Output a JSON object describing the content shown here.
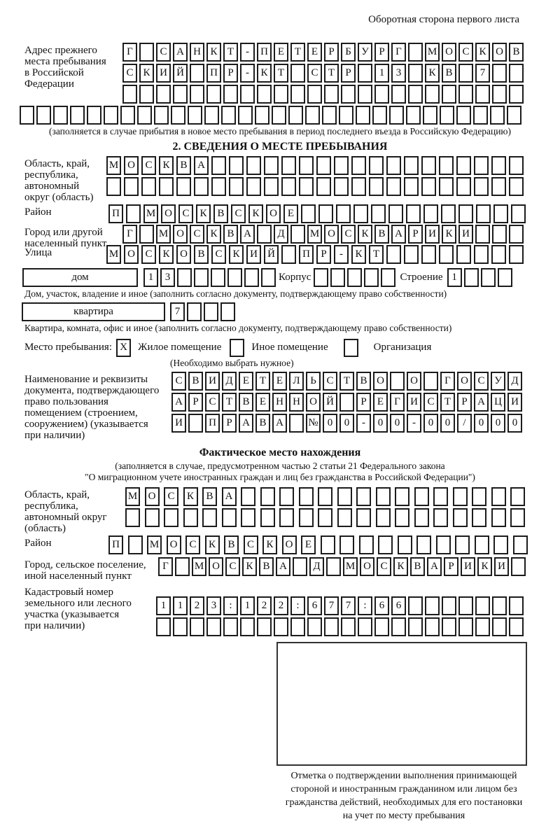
{
  "page": {
    "header_note": "Оборотная сторона первого листа"
  },
  "prev_address": {
    "label": "Адрес прежнего\nместа пребывания\nв Российской\nФедерации",
    "row1": {
      "text": "Г САНКТ-ПЕТЕРБУРГ МОСКОВ",
      "len": 24
    },
    "row2": {
      "text": "СКИЙ ПР-КТ СТР 13 КВ 7",
      "len": 24
    },
    "row3": {
      "text": "",
      "len": 24
    },
    "row4": {
      "text": "",
      "len": 30
    },
    "note": "(заполняется в случае прибытия в новое место пребывания в период последнего въезда в Российскую Федерацию)"
  },
  "section2": {
    "title": "2. СВЕДЕНИЯ О МЕСТЕ ПРЕБЫВАНИЯ",
    "region": {
      "label": "Область, край,\nреспублика,\nавтономный\nокруг (область)",
      "row1": {
        "text": "МОСКВА",
        "len": 24
      },
      "row2": {
        "text": "",
        "len": 24
      }
    },
    "district": {
      "label": "Район",
      "row": {
        "text": "П МОСКВСКОЕ",
        "len": 24
      }
    },
    "city": {
      "label": "Город или другой\nнаселенный пункт",
      "row": {
        "text": "Г МОСКВА Д МОСКВАРИКИ",
        "len": 24
      }
    },
    "street": {
      "label": "Улица",
      "row": {
        "text": "МОСКОВСКИЙ ПР-КТ",
        "len": 24
      }
    },
    "house": {
      "box_label": "дом",
      "cells": {
        "text": "13",
        "len": 8
      },
      "korpus_label": "Корпус",
      "korpus_cells": {
        "text": "",
        "len": 5
      },
      "stroenie_label": "Строение",
      "stroenie_cells": {
        "text": "1",
        "len": 4
      }
    },
    "house_note": "Дом, участок, владение и иное (заполнить согласно документу, подтверждающему право собственности)",
    "apartment": {
      "box_label": "квартира",
      "cells": {
        "text": "7",
        "len": 4
      }
    },
    "apartment_note": "Квартира, комната, офис и иное (заполнить согласно документу, подтверждающему право собственности)",
    "stay_type": {
      "label": "Место пребывания:",
      "options": [
        {
          "label": "Жилое помещение",
          "mark": "X"
        },
        {
          "label": "Иное помещение",
          "mark": ""
        },
        {
          "label": "Организация",
          "mark": ""
        }
      ],
      "note": "(Необходимо выбрать нужное)"
    },
    "document": {
      "label": "Наименование и реквизиты\nдокумента, подтверждающего\nправо пользования\nпомещением (строением,\nсооружением) (указывается\nпри наличии)",
      "row1": {
        "text": "СВИДЕТЕЛЬСТВО О ГОСУД",
        "len": 21
      },
      "row2": {
        "text": "АРСТВЕННОЙ РЕГИСТРАЦИ",
        "len": 21
      },
      "row3": {
        "text": "И ПРАВА №00-00-00/000",
        "len": 21
      }
    }
  },
  "actual_location": {
    "title": "Фактическое место нахождения",
    "note": "(заполняется в случае, предусмотренном частью 2 статьи 21 Федерального закона\n\"О миграционном учете иностранных граждан и лиц без гражданства в Российской Федерации\")",
    "region": {
      "label": "Область, край,\nреспублика,\nавтономный округ\n(область)",
      "row1": {
        "text": "МОСКВА",
        "len": 21
      },
      "row2": {
        "text": "",
        "len": 21
      }
    },
    "district": {
      "label": "Район",
      "row": {
        "text": "П МОСКВСКОЕ",
        "len": 22
      }
    },
    "city": {
      "label": "Город, сельское поселение,\nиной населенный пункт",
      "row": {
        "text": "Г МОСКВА Д МОСКВАРИКИ",
        "len": 22
      }
    },
    "cadastral": {
      "label": "Кадастровый номер\nземельного или лесного\nучастка (указывается\nпри наличии)",
      "row1": {
        "text": "1123:122:677:66",
        "len": 22
      },
      "row2": {
        "text": "",
        "len": 22
      }
    },
    "stamp_caption": "Отметка о подтверждении выполнения принимающей\nстороной и иностранным гражданином или лицом без\nгражданства действий, необходимых для его постановки\nна учет по месту пребывания"
  }
}
